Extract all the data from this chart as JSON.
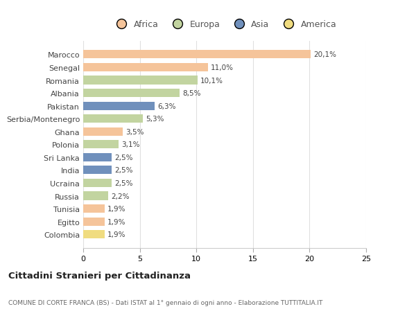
{
  "categories": [
    "Marocco",
    "Senegal",
    "Romania",
    "Albania",
    "Pakistan",
    "Serbia/Montenegro",
    "Ghana",
    "Polonia",
    "Sri Lanka",
    "India",
    "Ucraina",
    "Russia",
    "Tunisia",
    "Egitto",
    "Colombia"
  ],
  "values": [
    20.1,
    11.0,
    10.1,
    8.5,
    6.3,
    5.3,
    3.5,
    3.1,
    2.5,
    2.5,
    2.5,
    2.2,
    1.9,
    1.9,
    1.9
  ],
  "labels": [
    "20,1%",
    "11,0%",
    "10,1%",
    "8,5%",
    "6,3%",
    "5,3%",
    "3,5%",
    "3,1%",
    "2,5%",
    "2,5%",
    "2,5%",
    "2,2%",
    "1,9%",
    "1,9%",
    "1,9%"
  ],
  "bar_colors": [
    "#F5C49A",
    "#F5C49A",
    "#C2D4A0",
    "#C2D4A0",
    "#7090BC",
    "#C2D4A0",
    "#F5C49A",
    "#C2D4A0",
    "#7090BC",
    "#7090BC",
    "#C2D4A0",
    "#C2D4A0",
    "#F5C49A",
    "#F5C49A",
    "#F0DC80"
  ],
  "legend_labels": [
    "Africa",
    "Europa",
    "Asia",
    "America"
  ],
  "legend_colors": [
    "#F5C49A",
    "#C2D4A0",
    "#7090BC",
    "#F0DC80"
  ],
  "xlim": [
    0,
    25
  ],
  "xticks": [
    0,
    5,
    10,
    15,
    20,
    25
  ],
  "title": "Cittadini Stranieri per Cittadinanza",
  "subtitle": "COMUNE DI CORTE FRANCA (BS) - Dati ISTAT al 1° gennaio di ogni anno - Elaborazione TUTTITALIA.IT",
  "background_color": "#ffffff",
  "grid_color": "#e0e0e0"
}
